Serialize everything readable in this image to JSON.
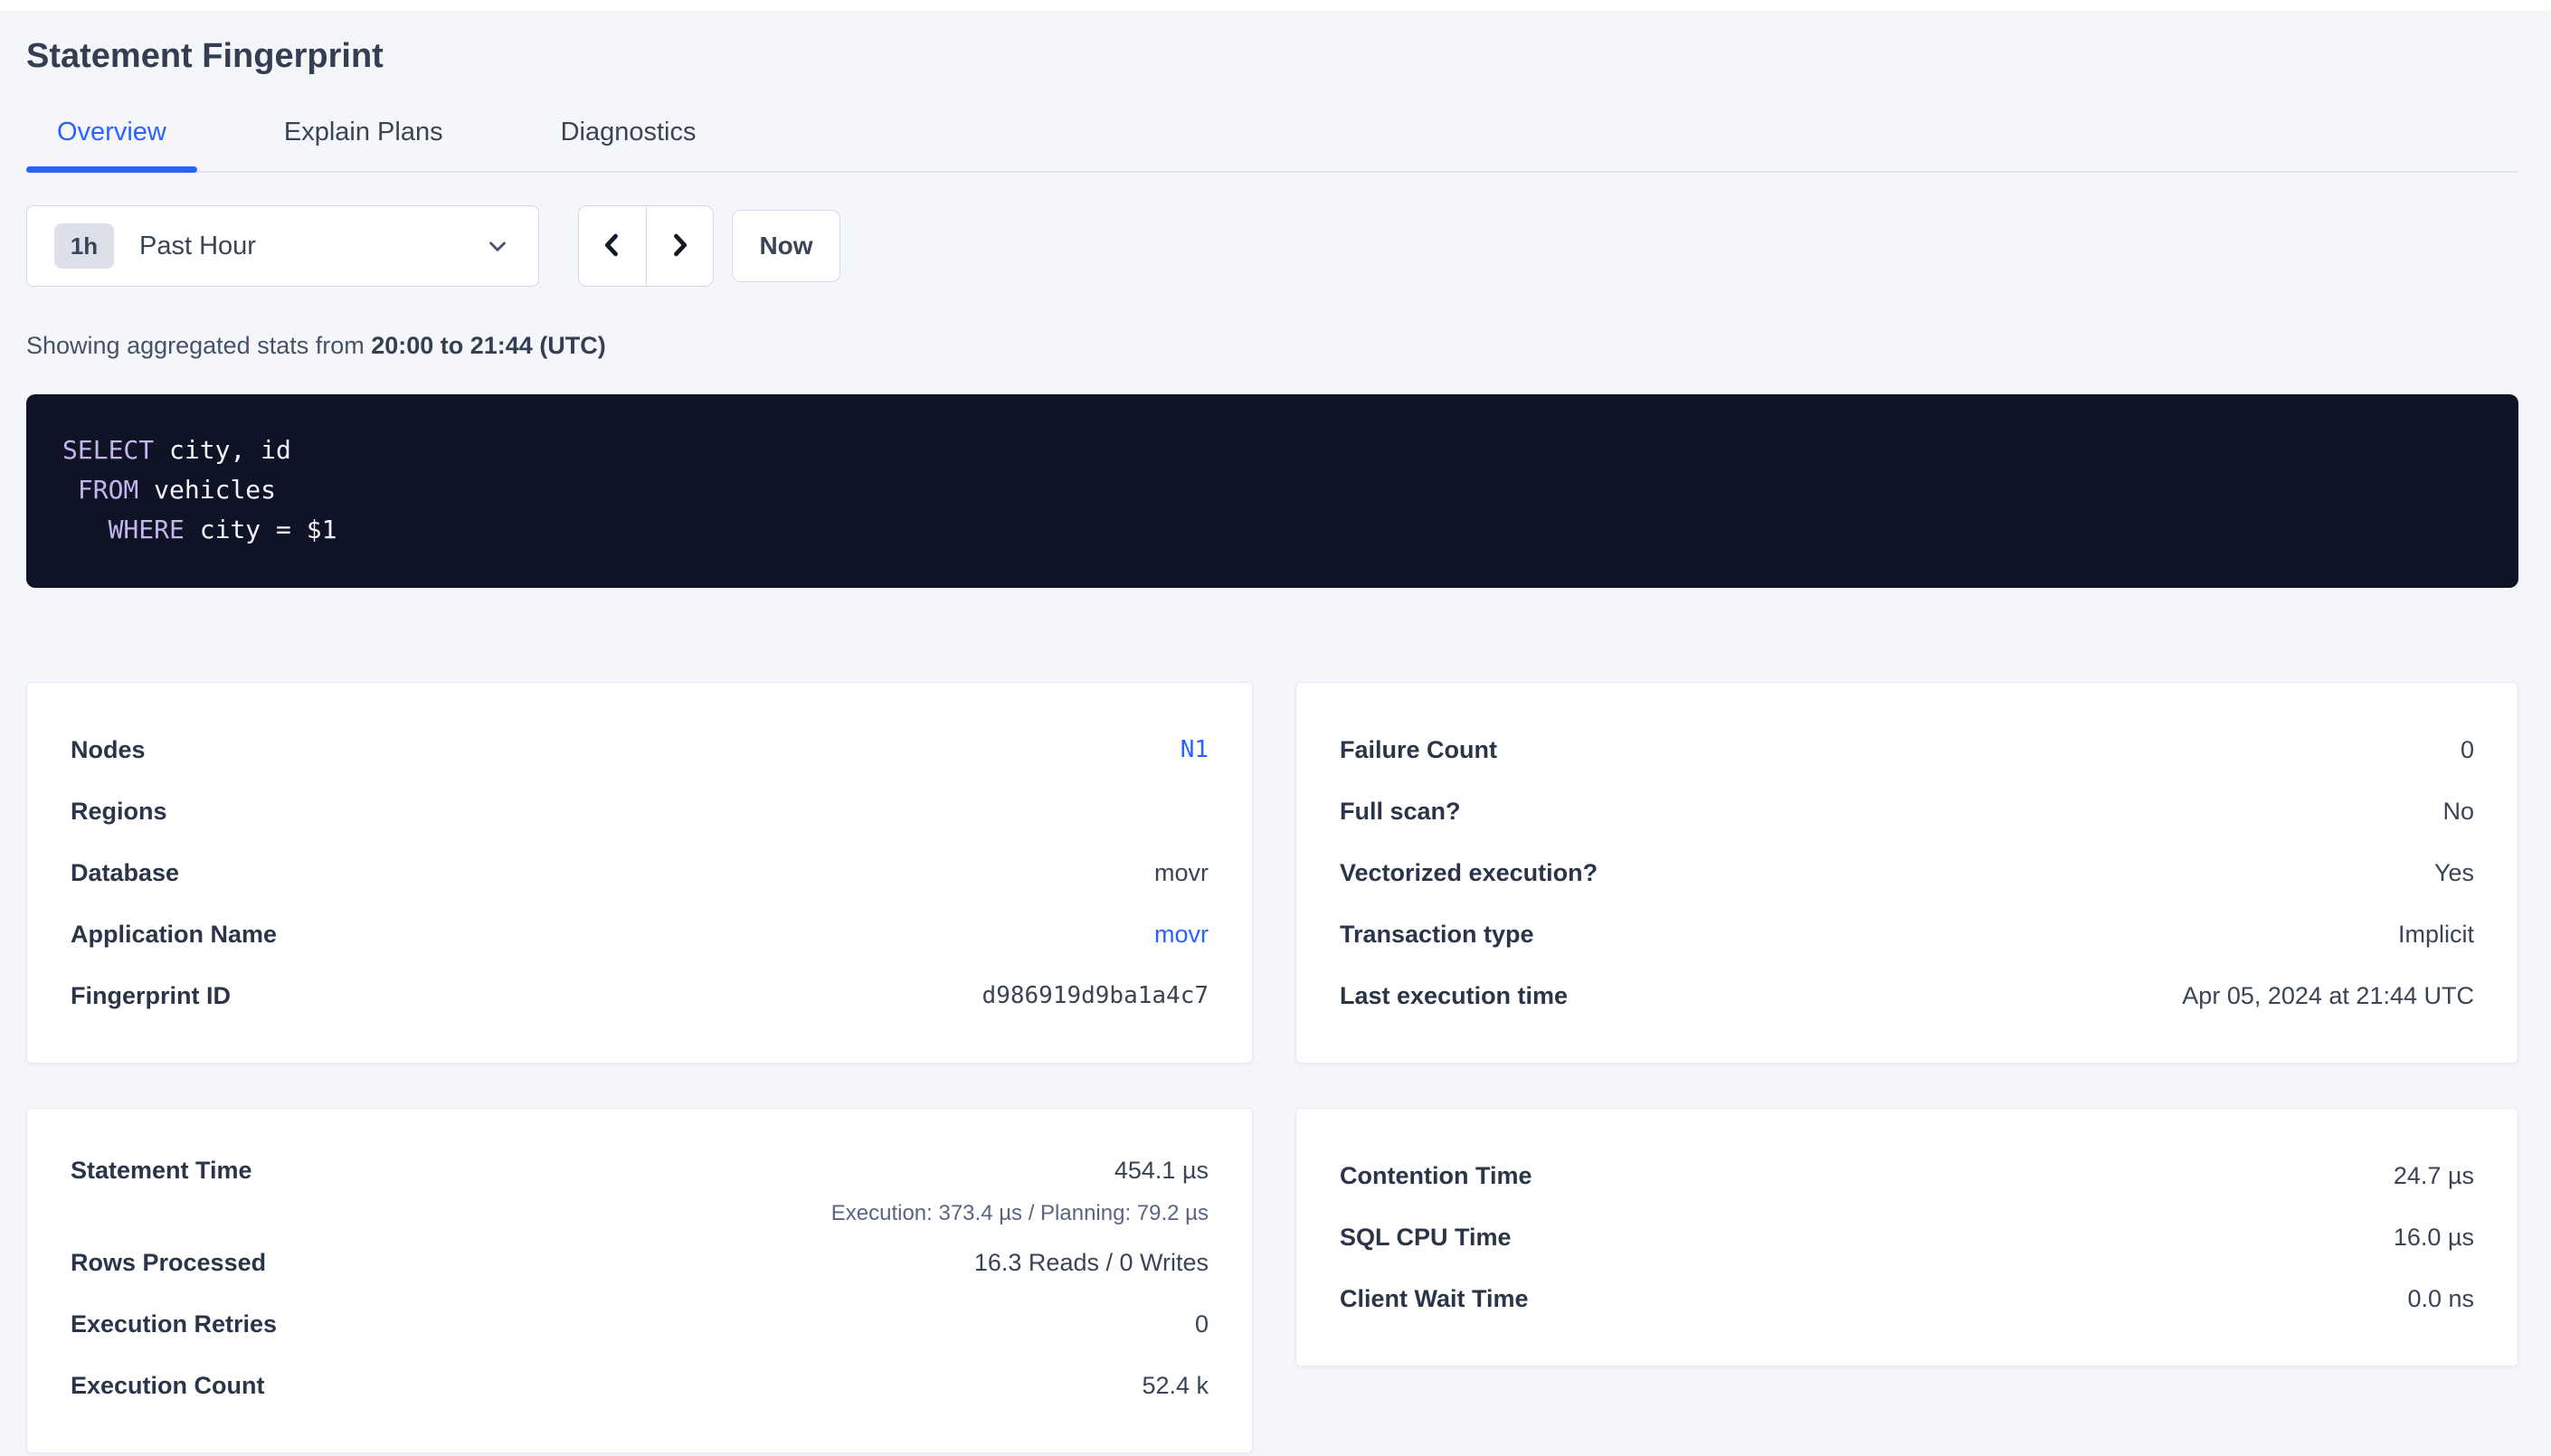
{
  "page": {
    "title": "Statement Fingerprint"
  },
  "tabs": [
    {
      "label": "Overview",
      "active": true
    },
    {
      "label": "Explain Plans",
      "active": false
    },
    {
      "label": "Diagnostics",
      "active": false
    }
  ],
  "time_picker": {
    "badge": "1h",
    "label": "Past Hour",
    "now_label": "Now"
  },
  "stats_line": {
    "prefix": "Showing aggregated stats from ",
    "range": "20:00 to 21:44 (UTC)"
  },
  "sql": {
    "lines": [
      {
        "segments": [
          {
            "text": "SELECT",
            "keyword": true
          },
          {
            "text": " city, id",
            "keyword": false
          }
        ]
      },
      {
        "segments": [
          {
            "text": " ",
            "keyword": false
          },
          {
            "text": "FROM",
            "keyword": true
          },
          {
            "text": " vehicles",
            "keyword": false
          }
        ]
      },
      {
        "segments": [
          {
            "text": "   ",
            "keyword": false
          },
          {
            "text": "WHERE",
            "keyword": true
          },
          {
            "text": " city = $1",
            "keyword": false
          }
        ]
      }
    ]
  },
  "cards": {
    "statement_details": {
      "rows": [
        {
          "label": "Nodes",
          "value": "N1",
          "value_type": "link-mono"
        },
        {
          "label": "Regions",
          "value": ""
        },
        {
          "label": "Database",
          "value": "movr"
        },
        {
          "label": "Application Name",
          "value": "movr",
          "value_type": "link"
        },
        {
          "label": "Fingerprint ID",
          "value": "d986919d9ba1a4c7",
          "value_type": "mono"
        }
      ]
    },
    "execution_attributes": {
      "rows": [
        {
          "label": "Failure Count",
          "value": "0"
        },
        {
          "label": "Full scan?",
          "value": "No"
        },
        {
          "label": "Vectorized execution?",
          "value": "Yes"
        },
        {
          "label": "Transaction type",
          "value": "Implicit"
        },
        {
          "label": "Last execution time",
          "value": "Apr 05, 2024 at 21:44 UTC"
        }
      ]
    },
    "statement_times": {
      "rows": [
        {
          "label": "Statement Time",
          "value": "454.1 µs",
          "subvalue": "Execution: 373.4 µs / Planning: 79.2 µs"
        },
        {
          "label": "Rows Processed",
          "value": "16.3 Reads / 0 Writes"
        },
        {
          "label": "Execution Retries",
          "value": "0"
        },
        {
          "label": "Execution Count",
          "value": "52.4 k"
        }
      ]
    },
    "wait_times": {
      "rows": [
        {
          "label": "Contention Time",
          "value": "24.7 µs"
        },
        {
          "label": "SQL CPU Time",
          "value": "16.0 µs"
        },
        {
          "label": "Client Wait Time",
          "value": "0.0 ns"
        }
      ]
    }
  },
  "colors": {
    "accent_blue": "#2962ff",
    "code_background": "#0e1426",
    "code_keyword": "#c4b5ec",
    "code_text": "#f5f4fb",
    "page_background": "#f4f6fa"
  }
}
